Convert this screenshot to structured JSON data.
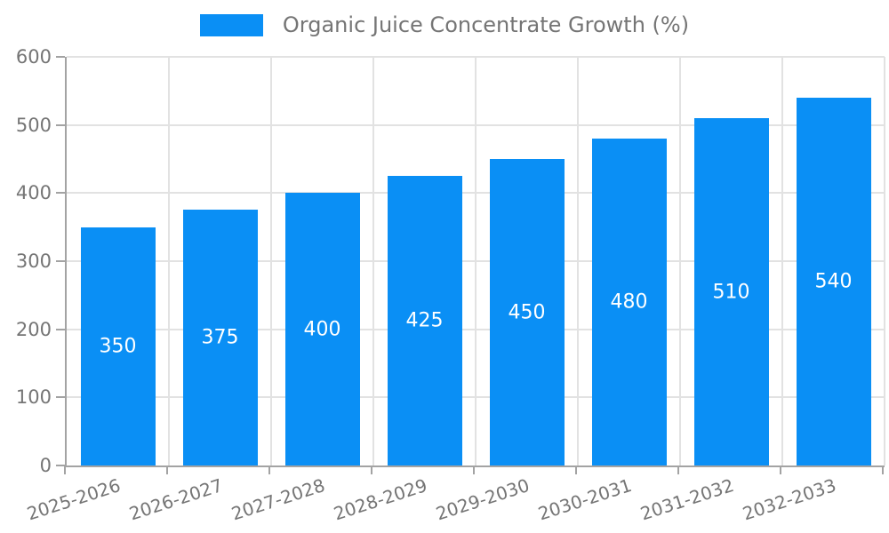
{
  "legend": {
    "label": "Organic Juice Concentrate Growth (%)"
  },
  "chart_data": {
    "type": "bar",
    "title": "Organic Juice Concentrate Growth (%)",
    "categories": [
      "2025-2026",
      "2026-2027",
      "2027-2028",
      "2028-2029",
      "2029-2030",
      "2030-2031",
      "2031-2032",
      "2032-2033"
    ],
    "values": [
      350,
      375,
      400,
      425,
      450,
      480,
      510,
      540
    ],
    "xlabel": "",
    "ylabel": "",
    "ylim": [
      0,
      600
    ],
    "yticks": [
      0,
      100,
      200,
      300,
      400,
      500,
      600
    ],
    "grid": true,
    "legend_position": "top-center",
    "bar_color": "#0a8ff5",
    "value_label_color": "#ffffff",
    "axis_color": "#a3a3a3",
    "gridline_color": "#e2e2e2",
    "tick_text_color": "#757575",
    "background_color": "#ffffff"
  }
}
